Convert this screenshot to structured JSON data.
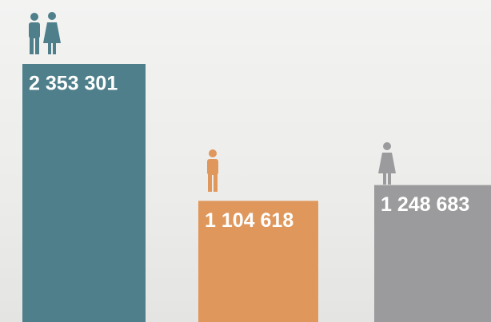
{
  "chart_data": {
    "type": "bar",
    "values": [
      2353301,
      1104618,
      1248683
    ],
    "value_labels": [
      "2 353 301",
      "1 104 618",
      "1 248 683"
    ],
    "colors": [
      "#4e7f8b",
      "#e0975b",
      "#9b9b9d"
    ]
  }
}
